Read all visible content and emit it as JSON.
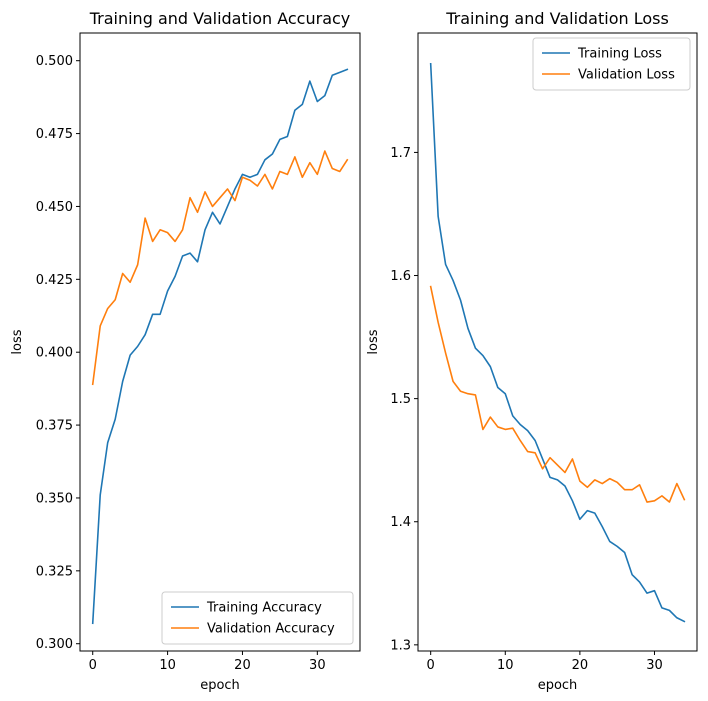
{
  "chart_data": [
    {
      "type": "line",
      "title": "Training and Validation Accuracy",
      "xlabel": "epoch",
      "ylabel": "loss",
      "xlim": [
        -1.7,
        35.7
      ],
      "ylim": [
        0.2975,
        0.5095
      ],
      "xticks": [
        0,
        10,
        20,
        30
      ],
      "yticks": [
        0.3,
        0.325,
        0.35,
        0.375,
        0.4,
        0.425,
        0.45,
        0.475,
        0.5
      ],
      "ytick_labels": [
        "0.300",
        "0.325",
        "0.350",
        "0.375",
        "0.400",
        "0.425",
        "0.450",
        "0.475",
        "0.500"
      ],
      "legend_loc": "bottom-right",
      "x": [
        0,
        1,
        2,
        3,
        4,
        5,
        6,
        7,
        8,
        9,
        10,
        11,
        12,
        13,
        14,
        15,
        16,
        17,
        18,
        19,
        20,
        21,
        22,
        23,
        24,
        25,
        26,
        27,
        28,
        29,
        30,
        31,
        32,
        33,
        34
      ],
      "series": [
        {
          "name": "Training Accuracy",
          "color": "#1f77b4",
          "values": [
            0.307,
            0.351,
            0.369,
            0.377,
            0.39,
            0.399,
            0.402,
            0.406,
            0.413,
            0.413,
            0.421,
            0.426,
            0.433,
            0.434,
            0.431,
            0.442,
            0.448,
            0.444,
            0.45,
            0.456,
            0.461,
            0.46,
            0.461,
            0.466,
            0.468,
            0.473,
            0.474,
            0.483,
            0.485,
            0.493,
            0.486,
            0.488,
            0.495,
            0.496,
            0.497
          ]
        },
        {
          "name": "Validation Accuracy",
          "color": "#ff7f0e",
          "values": [
            0.389,
            0.409,
            0.415,
            0.418,
            0.427,
            0.424,
            0.43,
            0.446,
            0.438,
            0.442,
            0.441,
            0.438,
            0.442,
            0.453,
            0.448,
            0.455,
            0.45,
            0.453,
            0.456,
            0.452,
            0.46,
            0.459,
            0.457,
            0.461,
            0.456,
            0.462,
            0.461,
            0.467,
            0.46,
            0.465,
            0.461,
            0.469,
            0.463,
            0.462,
            0.466
          ]
        }
      ]
    },
    {
      "type": "line",
      "title": "Training and Validation Loss",
      "xlabel": "epoch",
      "ylabel": "loss",
      "xlim": [
        -1.7,
        35.7
      ],
      "ylim": [
        1.295,
        1.797
      ],
      "xticks": [
        0,
        10,
        20,
        30
      ],
      "yticks": [
        1.3,
        1.4,
        1.5,
        1.6,
        1.7
      ],
      "ytick_labels": [
        "1.3",
        "1.4",
        "1.5",
        "1.6",
        "1.7"
      ],
      "legend_loc": "top-right",
      "x": [
        0,
        1,
        2,
        3,
        4,
        5,
        6,
        7,
        8,
        9,
        10,
        11,
        12,
        13,
        14,
        15,
        16,
        17,
        18,
        19,
        20,
        21,
        22,
        23,
        24,
        25,
        26,
        27,
        28,
        29,
        30,
        31,
        32,
        33,
        34
      ],
      "series": [
        {
          "name": "Training Loss",
          "color": "#1f77b4",
          "values": [
            1.772,
            1.648,
            1.609,
            1.596,
            1.58,
            1.557,
            1.541,
            1.535,
            1.526,
            1.509,
            1.504,
            1.486,
            1.479,
            1.474,
            1.466,
            1.451,
            1.436,
            1.434,
            1.429,
            1.417,
            1.402,
            1.409,
            1.407,
            1.396,
            1.384,
            1.38,
            1.375,
            1.357,
            1.351,
            1.342,
            1.344,
            1.33,
            1.328,
            1.322,
            1.319
          ]
        },
        {
          "name": "Validation Loss",
          "color": "#ff7f0e",
          "values": [
            1.591,
            1.562,
            1.537,
            1.514,
            1.506,
            1.504,
            1.503,
            1.475,
            1.485,
            1.477,
            1.475,
            1.476,
            1.466,
            1.457,
            1.456,
            1.443,
            1.452,
            1.446,
            1.44,
            1.451,
            1.433,
            1.428,
            1.434,
            1.431,
            1.435,
            1.432,
            1.426,
            1.426,
            1.43,
            1.416,
            1.417,
            1.421,
            1.416,
            1.431,
            1.418
          ]
        }
      ]
    }
  ]
}
